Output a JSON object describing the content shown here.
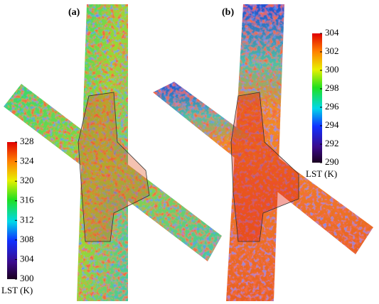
{
  "panels": [
    {
      "label": "(a)",
      "colorbar": {
        "title": "LST (K)",
        "range": [
          300,
          328
        ],
        "ticks": [
          300,
          304,
          308,
          312,
          316,
          320,
          324,
          328
        ]
      }
    },
    {
      "label": "(b)",
      "colorbar": {
        "title": "LST (K)",
        "range": [
          290,
          304
        ],
        "ticks": [
          290,
          292,
          294,
          296,
          298,
          300,
          302,
          304
        ]
      }
    }
  ]
}
